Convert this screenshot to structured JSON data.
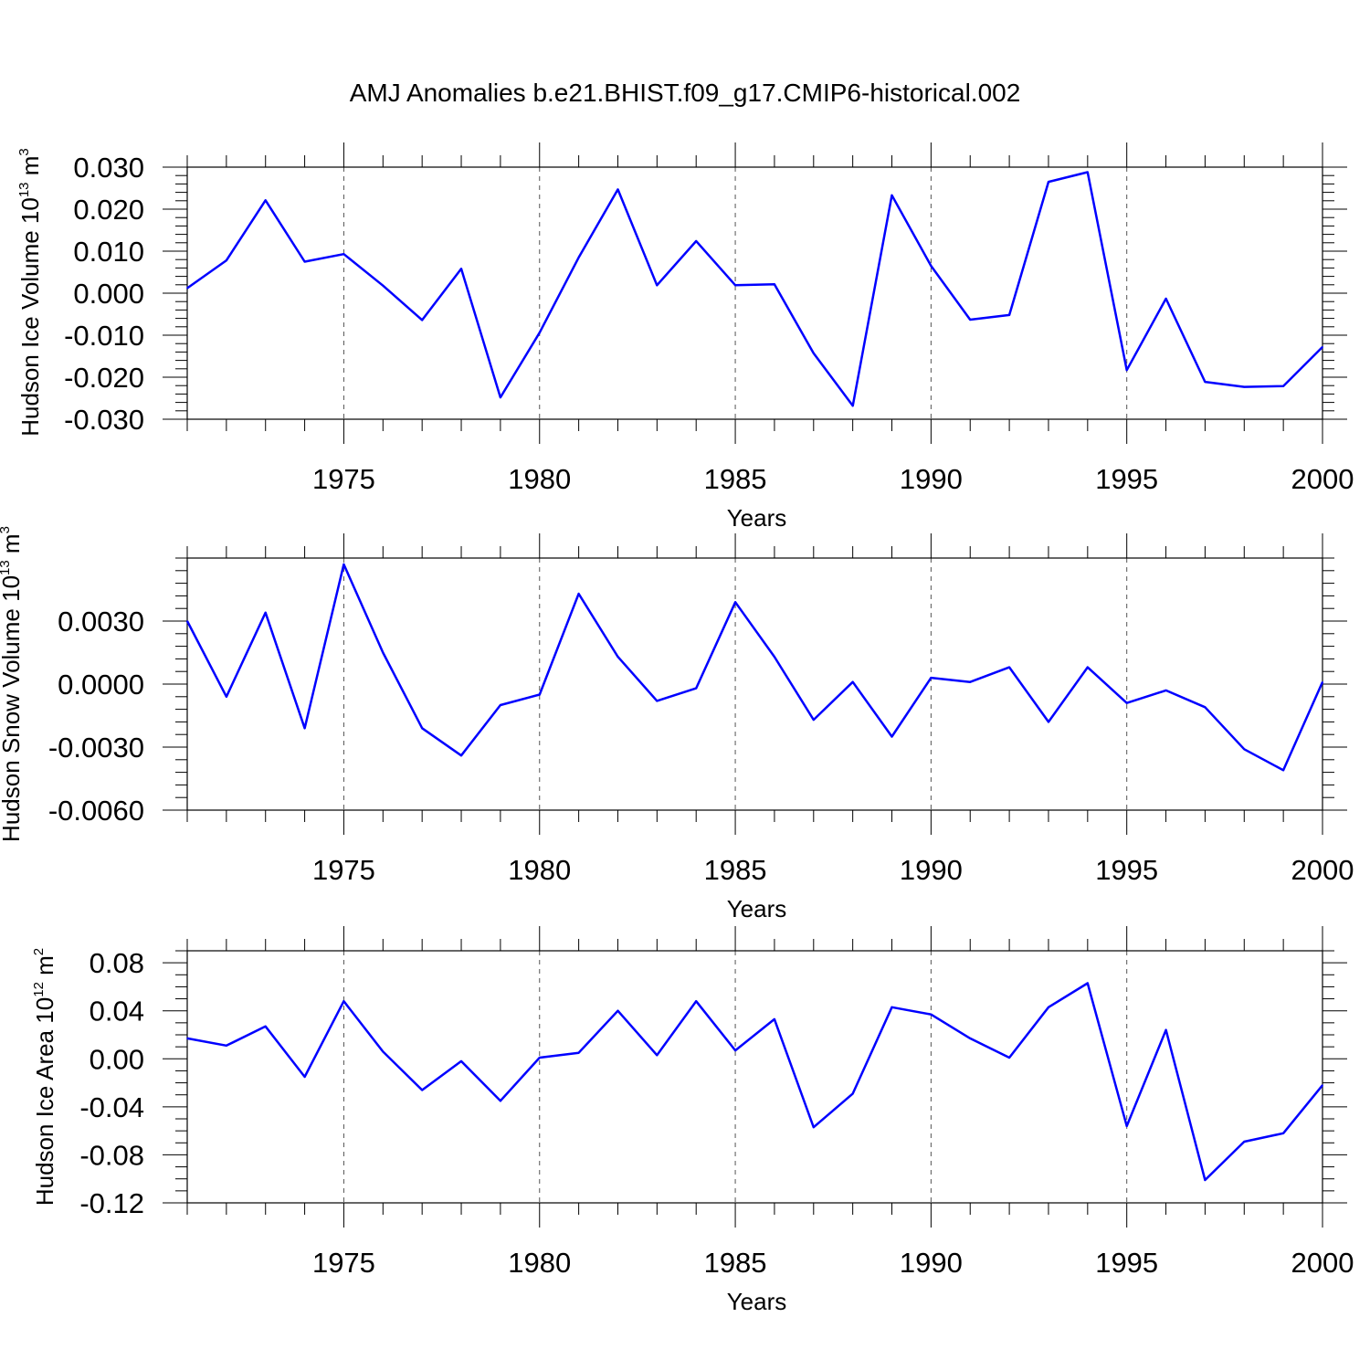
{
  "title": "AMJ Anomalies b.e21.BHIST.f09_g17.CMIP6-historical.002",
  "chart_data": [
    {
      "type": "line",
      "xlabel": "Years",
      "ylabel": "Hudson Ice Volume 10",
      "ylabel_exp": "13",
      "ylabel_unit": "m",
      "ylabel_unit_exp": "3",
      "xlim": [
        1971,
        2000
      ],
      "ylim": [
        -0.03,
        0.03
      ],
      "xticks": [
        "1975",
        "1980",
        "1985",
        "1990",
        "1995",
        "2000"
      ],
      "yticks": [
        "0.030",
        "0.020",
        "0.010",
        "0.000",
        "-0.010",
        "-0.020",
        "-0.030"
      ],
      "ytick_values": [
        0.03,
        0.02,
        0.01,
        0.0,
        -0.01,
        -0.02,
        -0.03
      ],
      "grid": "dashed vertical lines at 1975, 1980, 1985, 1990, 1995",
      "color": "#0000ff",
      "x": [
        1971,
        1972,
        1973,
        1974,
        1975,
        1976,
        1977,
        1978,
        1979,
        1980,
        1981,
        1982,
        1983,
        1984,
        1985,
        1986,
        1987,
        1988,
        1989,
        1990,
        1991,
        1992,
        1993,
        1994,
        1995,
        1996,
        1997,
        1998,
        1999,
        2000
      ],
      "values": [
        0.0012,
        0.0078,
        0.0221,
        0.0075,
        0.0093,
        0.0018,
        -0.0064,
        0.0058,
        -0.0248,
        -0.0094,
        0.0085,
        0.0247,
        0.0019,
        0.0124,
        0.0019,
        0.0021,
        -0.0143,
        -0.0268,
        0.0233,
        0.0065,
        -0.0063,
        -0.0052,
        0.0265,
        0.0288,
        -0.0183,
        -0.0013,
        -0.0211,
        -0.0223,
        -0.0221,
        -0.0128
      ]
    },
    {
      "type": "line",
      "xlabel": "Years",
      "ylabel": "Hudson Snow Volume 10",
      "ylabel_exp": "13",
      "ylabel_unit": "m",
      "ylabel_unit_exp": "3",
      "xlim": [
        1971,
        2000
      ],
      "ylim": [
        -0.006,
        0.006
      ],
      "xticks": [
        "1975",
        "1980",
        "1985",
        "1990",
        "1995",
        "2000"
      ],
      "yticks": [
        "0.0030",
        "0.0000",
        "-0.0030",
        "-0.0060"
      ],
      "ytick_values": [
        0.003,
        0.0,
        -0.003,
        -0.006
      ],
      "grid": "dashed vertical lines at 1975, 1980, 1985, 1990, 1995",
      "color": "#0000ff",
      "x": [
        1971,
        1972,
        1973,
        1974,
        1975,
        1976,
        1977,
        1978,
        1979,
        1980,
        1981,
        1982,
        1983,
        1984,
        1985,
        1986,
        1987,
        1988,
        1989,
        1990,
        1991,
        1992,
        1993,
        1994,
        1995,
        1996,
        1997,
        1998,
        1999,
        2000
      ],
      "values": [
        0.003,
        -0.0006,
        0.0034,
        -0.0021,
        0.0057,
        0.0015,
        -0.0021,
        -0.0034,
        -0.001,
        -0.0005,
        0.0043,
        0.0013,
        -0.0008,
        -0.0002,
        0.0039,
        0.0013,
        -0.0017,
        0.0001,
        -0.0025,
        0.0003,
        0.0001,
        0.0008,
        -0.0018,
        0.0008,
        -0.0009,
        -0.0003,
        -0.0011,
        -0.0031,
        -0.0041,
        0.0001
      ]
    },
    {
      "type": "line",
      "xlabel": "Years",
      "ylabel": "Hudson Ice Area 10",
      "ylabel_exp": "12",
      "ylabel_unit": "m",
      "ylabel_unit_exp": "2",
      "xlim": [
        1971,
        2000
      ],
      "ylim": [
        -0.12,
        0.09
      ],
      "xticks": [
        "1975",
        "1980",
        "1985",
        "1990",
        "1995",
        "2000"
      ],
      "yticks": [
        "0.08",
        "0.04",
        "0.00",
        "-0.04",
        "-0.08",
        "-0.12"
      ],
      "ytick_values": [
        0.08,
        0.04,
        0.0,
        -0.04,
        -0.08,
        -0.12
      ],
      "grid": "dashed vertical lines at 1975, 1980, 1985, 1990, 1995",
      "color": "#0000ff",
      "x": [
        1971,
        1972,
        1973,
        1974,
        1975,
        1976,
        1977,
        1978,
        1979,
        1980,
        1981,
        1982,
        1983,
        1984,
        1985,
        1986,
        1987,
        1988,
        1989,
        1990,
        1991,
        1992,
        1993,
        1994,
        1995,
        1996,
        1997,
        1998,
        1999,
        2000
      ],
      "values": [
        0.017,
        0.011,
        0.027,
        -0.015,
        0.048,
        0.006,
        -0.026,
        -0.002,
        -0.035,
        0.001,
        0.005,
        0.04,
        0.003,
        0.048,
        0.007,
        0.033,
        -0.057,
        -0.029,
        0.043,
        0.037,
        0.017,
        0.001,
        0.043,
        0.063,
        -0.056,
        0.024,
        -0.101,
        -0.069,
        -0.062,
        -0.022
      ]
    }
  ]
}
